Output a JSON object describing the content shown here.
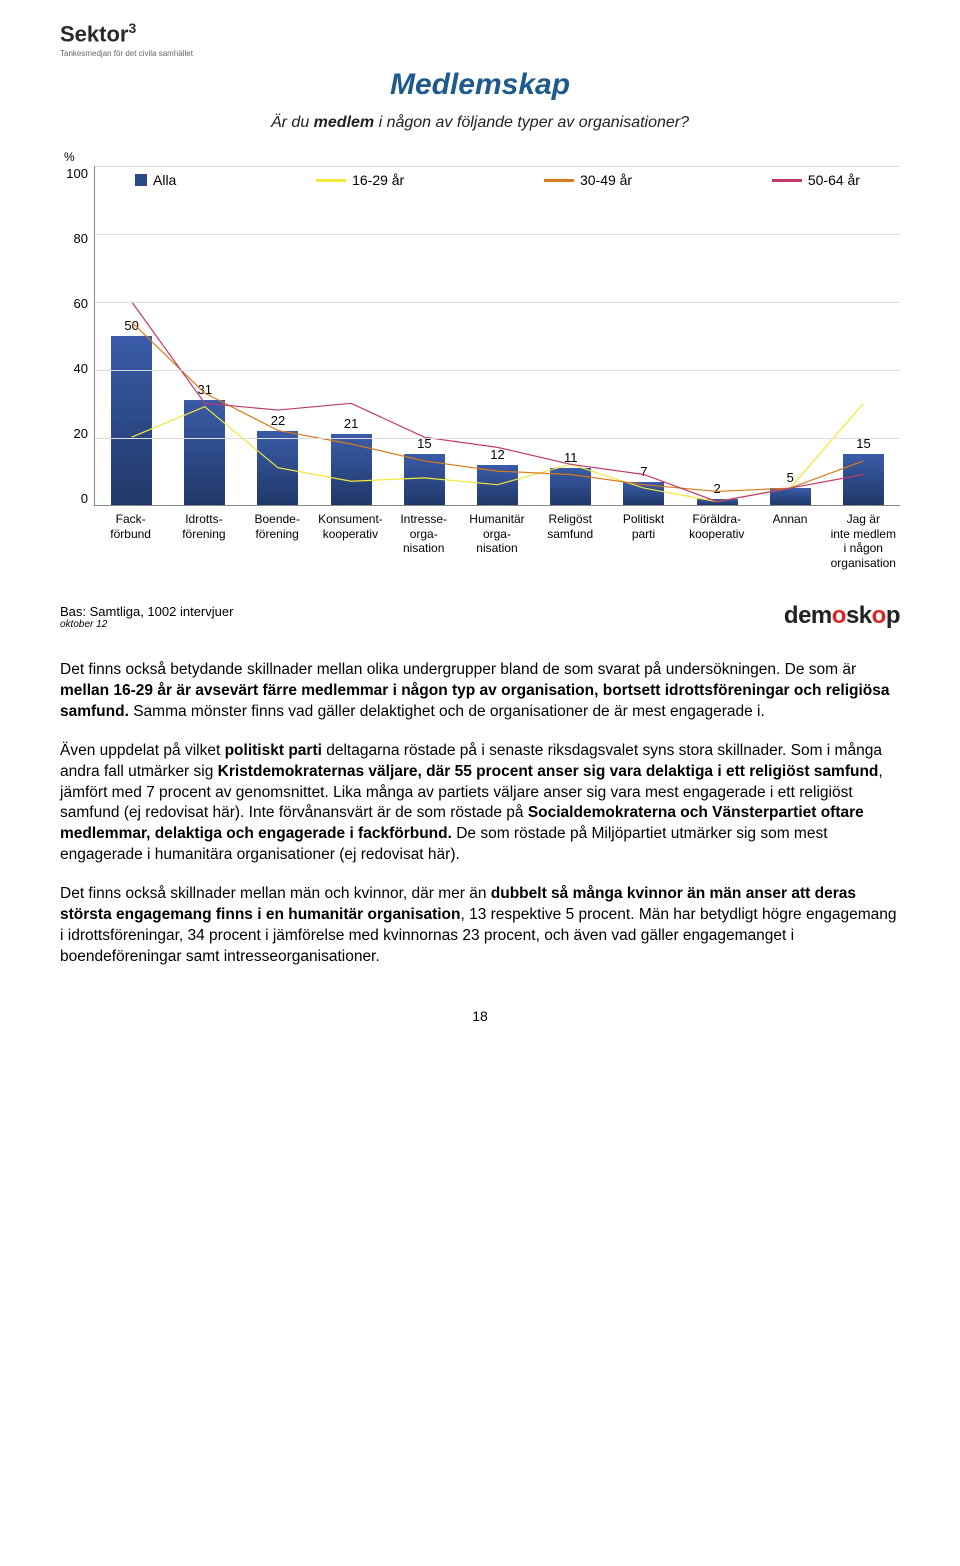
{
  "logo": {
    "name": "Sektor",
    "sup": "3",
    "sub": "Tankesmedjan för det civila samhället"
  },
  "chart": {
    "title": "Medlemskap",
    "subtitle_pre": "Är du ",
    "subtitle_bold": "medlem",
    "subtitle_post": " i någon av följande typer av organisationer?",
    "y_unit": "%",
    "y_ticks": [
      "100",
      "80",
      "60",
      "40",
      "20",
      "0"
    ],
    "ymax": 100,
    "legend": [
      {
        "label": "Alla",
        "type": "bar",
        "color": "#2b4a8a"
      },
      {
        "label": "16-29 år",
        "type": "line",
        "color": "#f5e63a"
      },
      {
        "label": "30-49 år",
        "type": "line",
        "color": "#d97a1a"
      },
      {
        "label": "50-64 år",
        "type": "line",
        "color": "#c23a6a"
      }
    ],
    "categories": [
      "Fack-\nförbund",
      "Idrotts-\nförening",
      "Boende-\nförening",
      "Konsument-\nkooperativ",
      "Intresse-\norga-\nnisation",
      "Humanitär\norga-\nnisation",
      "Religöst\nsamfund",
      "Politiskt\nparti",
      "Föräldra-\nkooperativ",
      "Annan",
      "Jag är\ninte medlem\ni någon organisation"
    ],
    "bars": [
      50,
      31,
      22,
      21,
      15,
      12,
      11,
      7,
      2,
      5,
      15
    ],
    "lines": {
      "age16_29": {
        "color": "#f5e63a",
        "values": [
          20,
          29,
          11,
          7,
          8,
          6,
          12,
          5,
          1,
          5,
          30
        ]
      },
      "age30_49": {
        "color": "#d97a1a",
        "values": [
          54,
          33,
          22,
          18,
          13,
          10,
          9,
          6,
          4,
          5,
          13
        ]
      },
      "age50_64": {
        "color": "#c23a6a",
        "values": [
          60,
          30,
          28,
          30,
          20,
          17,
          12,
          9,
          1,
          5,
          9
        ]
      }
    },
    "bar_color": "#2b4a8a"
  },
  "footer": {
    "base": "Bas: Samtliga, 1002 intervjuer",
    "date": "oktober 12",
    "brand": "demoskop"
  },
  "paragraphs": {
    "p1a": "Det finns också betydande skillnader mellan olika undergrupper bland de som svarat på undersökningen. De som är ",
    "p1b": "mellan 16-29 år är avsevärt färre medlemmar i någon typ av organisation, bortsett idrottsföreningar och religiösa samfund.",
    "p1c": " Samma mönster finns vad gäller delaktighet och de organisationer de är mest engagerade i.",
    "p2a": "Även uppdelat på vilket ",
    "p2b": "politiskt parti",
    "p2c": " deltagarna röstade på i senaste riksdagsvalet syns stora skillnader. Som i många andra fall utmärker sig ",
    "p2d": "Kristdemokraternas väljare, där 55 procent anser sig vara delaktiga i ett religiöst samfund",
    "p2e": ", jämfört med 7 procent av genomsnittet. Lika många av partiets väljare anser sig vara mest engagerade i ett religiöst samfund (ej redovisat här). Inte förvånansvärt är de som röstade på ",
    "p2f": "Socialdemokraterna och Vänsterpartiet oftare medlemmar, delaktiga och engagerade i fackförbund.",
    "p2g": " De som röstade på Miljöpartiet utmärker sig som mest engagerade i humanitära organisationer (ej redovisat här).",
    "p3a": "Det finns också skillnader mellan män och kvinnor, där mer än ",
    "p3b": "dubbelt så många kvinnor än män anser att deras största engagemang finns i en humanitär organisation",
    "p3c": ", 13 respektive 5 procent. Män har betydligt högre engagemang i idrottsföreningar, 34 procent i jämförelse med kvinnornas 23 procent, och även vad gäller engagemanget i boendeföreningar samt intresseorganisationer."
  },
  "page_number": "18"
}
